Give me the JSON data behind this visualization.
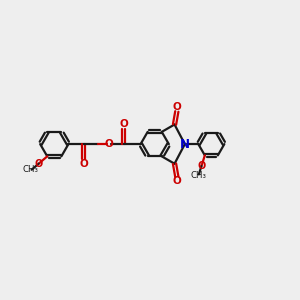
{
  "bg_color": "#eeeeee",
  "bond_color": "#1a1a1a",
  "o_color": "#cc0000",
  "n_color": "#0000cc",
  "lw": 1.6,
  "dbl_off": 0.055,
  "r": 0.48,
  "figsize": [
    3.0,
    3.0
  ],
  "dpi": 100,
  "xlim": [
    0,
    10
  ],
  "ylim": [
    0,
    10
  ]
}
